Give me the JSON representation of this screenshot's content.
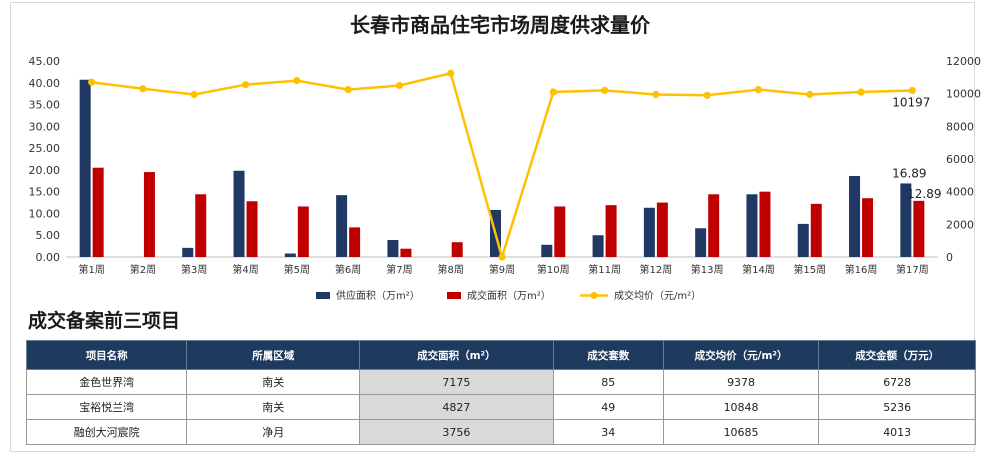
{
  "colors": {
    "supply": "#1f3864",
    "deal": "#c00000",
    "price": "#ffc000",
    "header": "#1f3a5f"
  },
  "chart_data": {
    "type": "bar",
    "title": "长春市商品住宅市场周度供求量价",
    "categories": [
      "第1周",
      "第2周",
      "第3周",
      "第4周",
      "第5周",
      "第6周",
      "第7周",
      "第8周",
      "第9周",
      "第10周",
      "第11周",
      "第12周",
      "第13周",
      "第14周",
      "第15周",
      "第16周",
      "第17周"
    ],
    "y_left_range": [
      0,
      45
    ],
    "y_left_ticks": [
      "0.00",
      "5.00",
      "10.00",
      "15.00",
      "20.00",
      "25.00",
      "30.00",
      "35.00",
      "40.00",
      "45.00"
    ],
    "y_right_range": [
      0,
      12000
    ],
    "y_right_ticks": [
      "0",
      "2000",
      "4000",
      "6000",
      "8000",
      "10000",
      "12000"
    ],
    "series": [
      {
        "name": "供应面积（万m²）",
        "type": "bar",
        "axis": "left",
        "values": [
          40.7,
          0,
          2.1,
          19.8,
          0.8,
          14.2,
          3.9,
          0,
          10.8,
          2.8,
          5.0,
          11.3,
          6.6,
          14.4,
          7.6,
          18.6,
          16.89
        ]
      },
      {
        "name": "成交面积（万m²）",
        "type": "bar",
        "axis": "left",
        "values": [
          20.5,
          19.5,
          14.4,
          12.8,
          11.6,
          6.8,
          1.9,
          3.4,
          0,
          11.6,
          11.9,
          12.5,
          14.4,
          15.0,
          12.2,
          13.5,
          12.89
        ]
      },
      {
        "name": "成交均价（元/m²）",
        "type": "line",
        "axis": "right",
        "values": [
          10700,
          10300,
          9950,
          10550,
          10800,
          10250,
          10500,
          11250,
          0,
          10100,
          10200,
          9950,
          9900,
          10250,
          9950,
          10100,
          10197
        ]
      }
    ],
    "data_labels": {
      "supply_last": "16.89",
      "deal_last": "12.89",
      "price_last": "10197"
    },
    "legend_position": "bottom"
  },
  "table": {
    "section_title": "成交备案前三项目",
    "headers": [
      "项目名称",
      "所属区域",
      "成交面积（m²）",
      "成交套数",
      "成交均价（元/m²）",
      "成交金额（万元）"
    ],
    "rows": [
      [
        "金色世界湾",
        "南关",
        "7175",
        "85",
        "9378",
        "6728"
      ],
      [
        "宝裕悦兰湾",
        "南关",
        "4827",
        "49",
        "10848",
        "5236"
      ],
      [
        "融创大河宸院",
        "净月",
        "3756",
        "34",
        "10685",
        "4013"
      ]
    ]
  }
}
